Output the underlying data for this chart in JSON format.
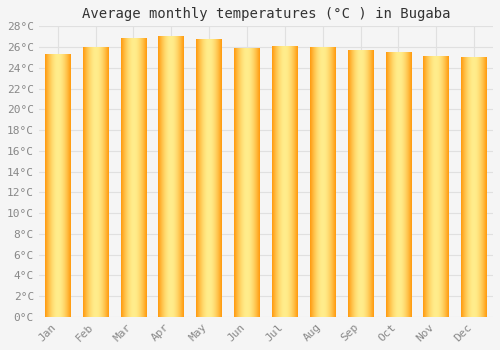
{
  "title": "Average monthly temperatures (°C ) in Bugaba",
  "months": [
    "Jan",
    "Feb",
    "Mar",
    "Apr",
    "May",
    "Jun",
    "Jul",
    "Aug",
    "Sep",
    "Oct",
    "Nov",
    "Dec"
  ],
  "values": [
    25.3,
    26.0,
    26.8,
    27.0,
    26.7,
    25.9,
    26.1,
    26.0,
    25.7,
    25.5,
    25.1,
    25.0
  ],
  "ylim": [
    0,
    28
  ],
  "ytick_step": 2,
  "background_color": "#f5f5f5",
  "grid_color": "#e0e0e0",
  "title_fontsize": 10,
  "tick_fontsize": 8,
  "bar_width": 0.68,
  "bar_edge_color": "#c87000",
  "bar_center_color": "#FFE066",
  "bar_outer_color": "#FFA500"
}
